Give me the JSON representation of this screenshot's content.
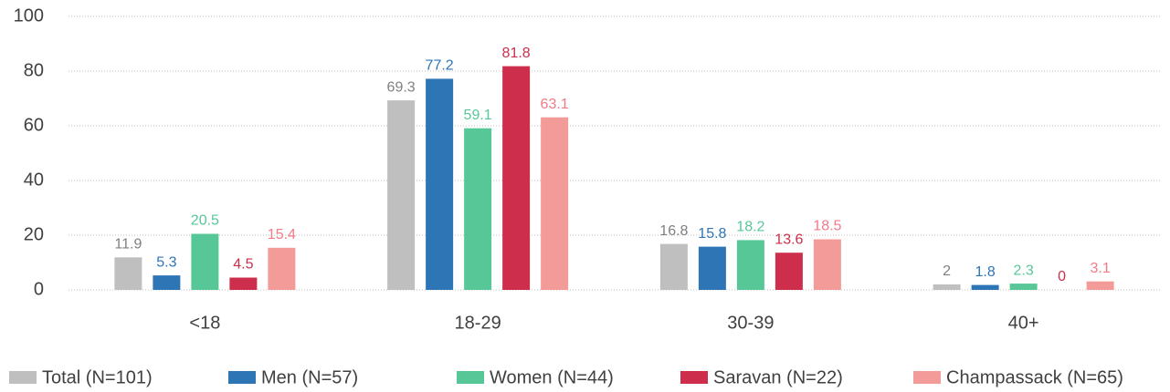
{
  "chart_data": {
    "type": "bar",
    "categories": [
      "<18",
      "18-29",
      "30-39",
      "40+"
    ],
    "series": [
      {
        "name": "Total (N=101)",
        "color": "#bfbfbf",
        "label_color": "#808080",
        "values": [
          11.9,
          69.3,
          16.8,
          2
        ]
      },
      {
        "name": "Men (N=57)",
        "color": "#2e75b6",
        "label_color": "#2e75b6",
        "values": [
          5.3,
          77.2,
          15.8,
          1.8
        ]
      },
      {
        "name": "Women (N=44)",
        "color": "#57c797",
        "label_color": "#57c797",
        "values": [
          20.5,
          59.1,
          18.2,
          2.3
        ]
      },
      {
        "name": "Saravan (N=22)",
        "color": "#cc2e4b",
        "label_color": "#cc2e4b",
        "values": [
          4.5,
          81.8,
          13.6,
          0
        ]
      },
      {
        "name": "Champassack (N=65)",
        "color": "#f29b98",
        "label_color": "#f07a88",
        "values": [
          15.4,
          63.1,
          18.5,
          3.1
        ]
      }
    ],
    "ylim": [
      0,
      100
    ],
    "yticks": [
      0,
      20,
      40,
      60,
      80,
      100
    ],
    "grid": true,
    "legend": "bottom"
  }
}
